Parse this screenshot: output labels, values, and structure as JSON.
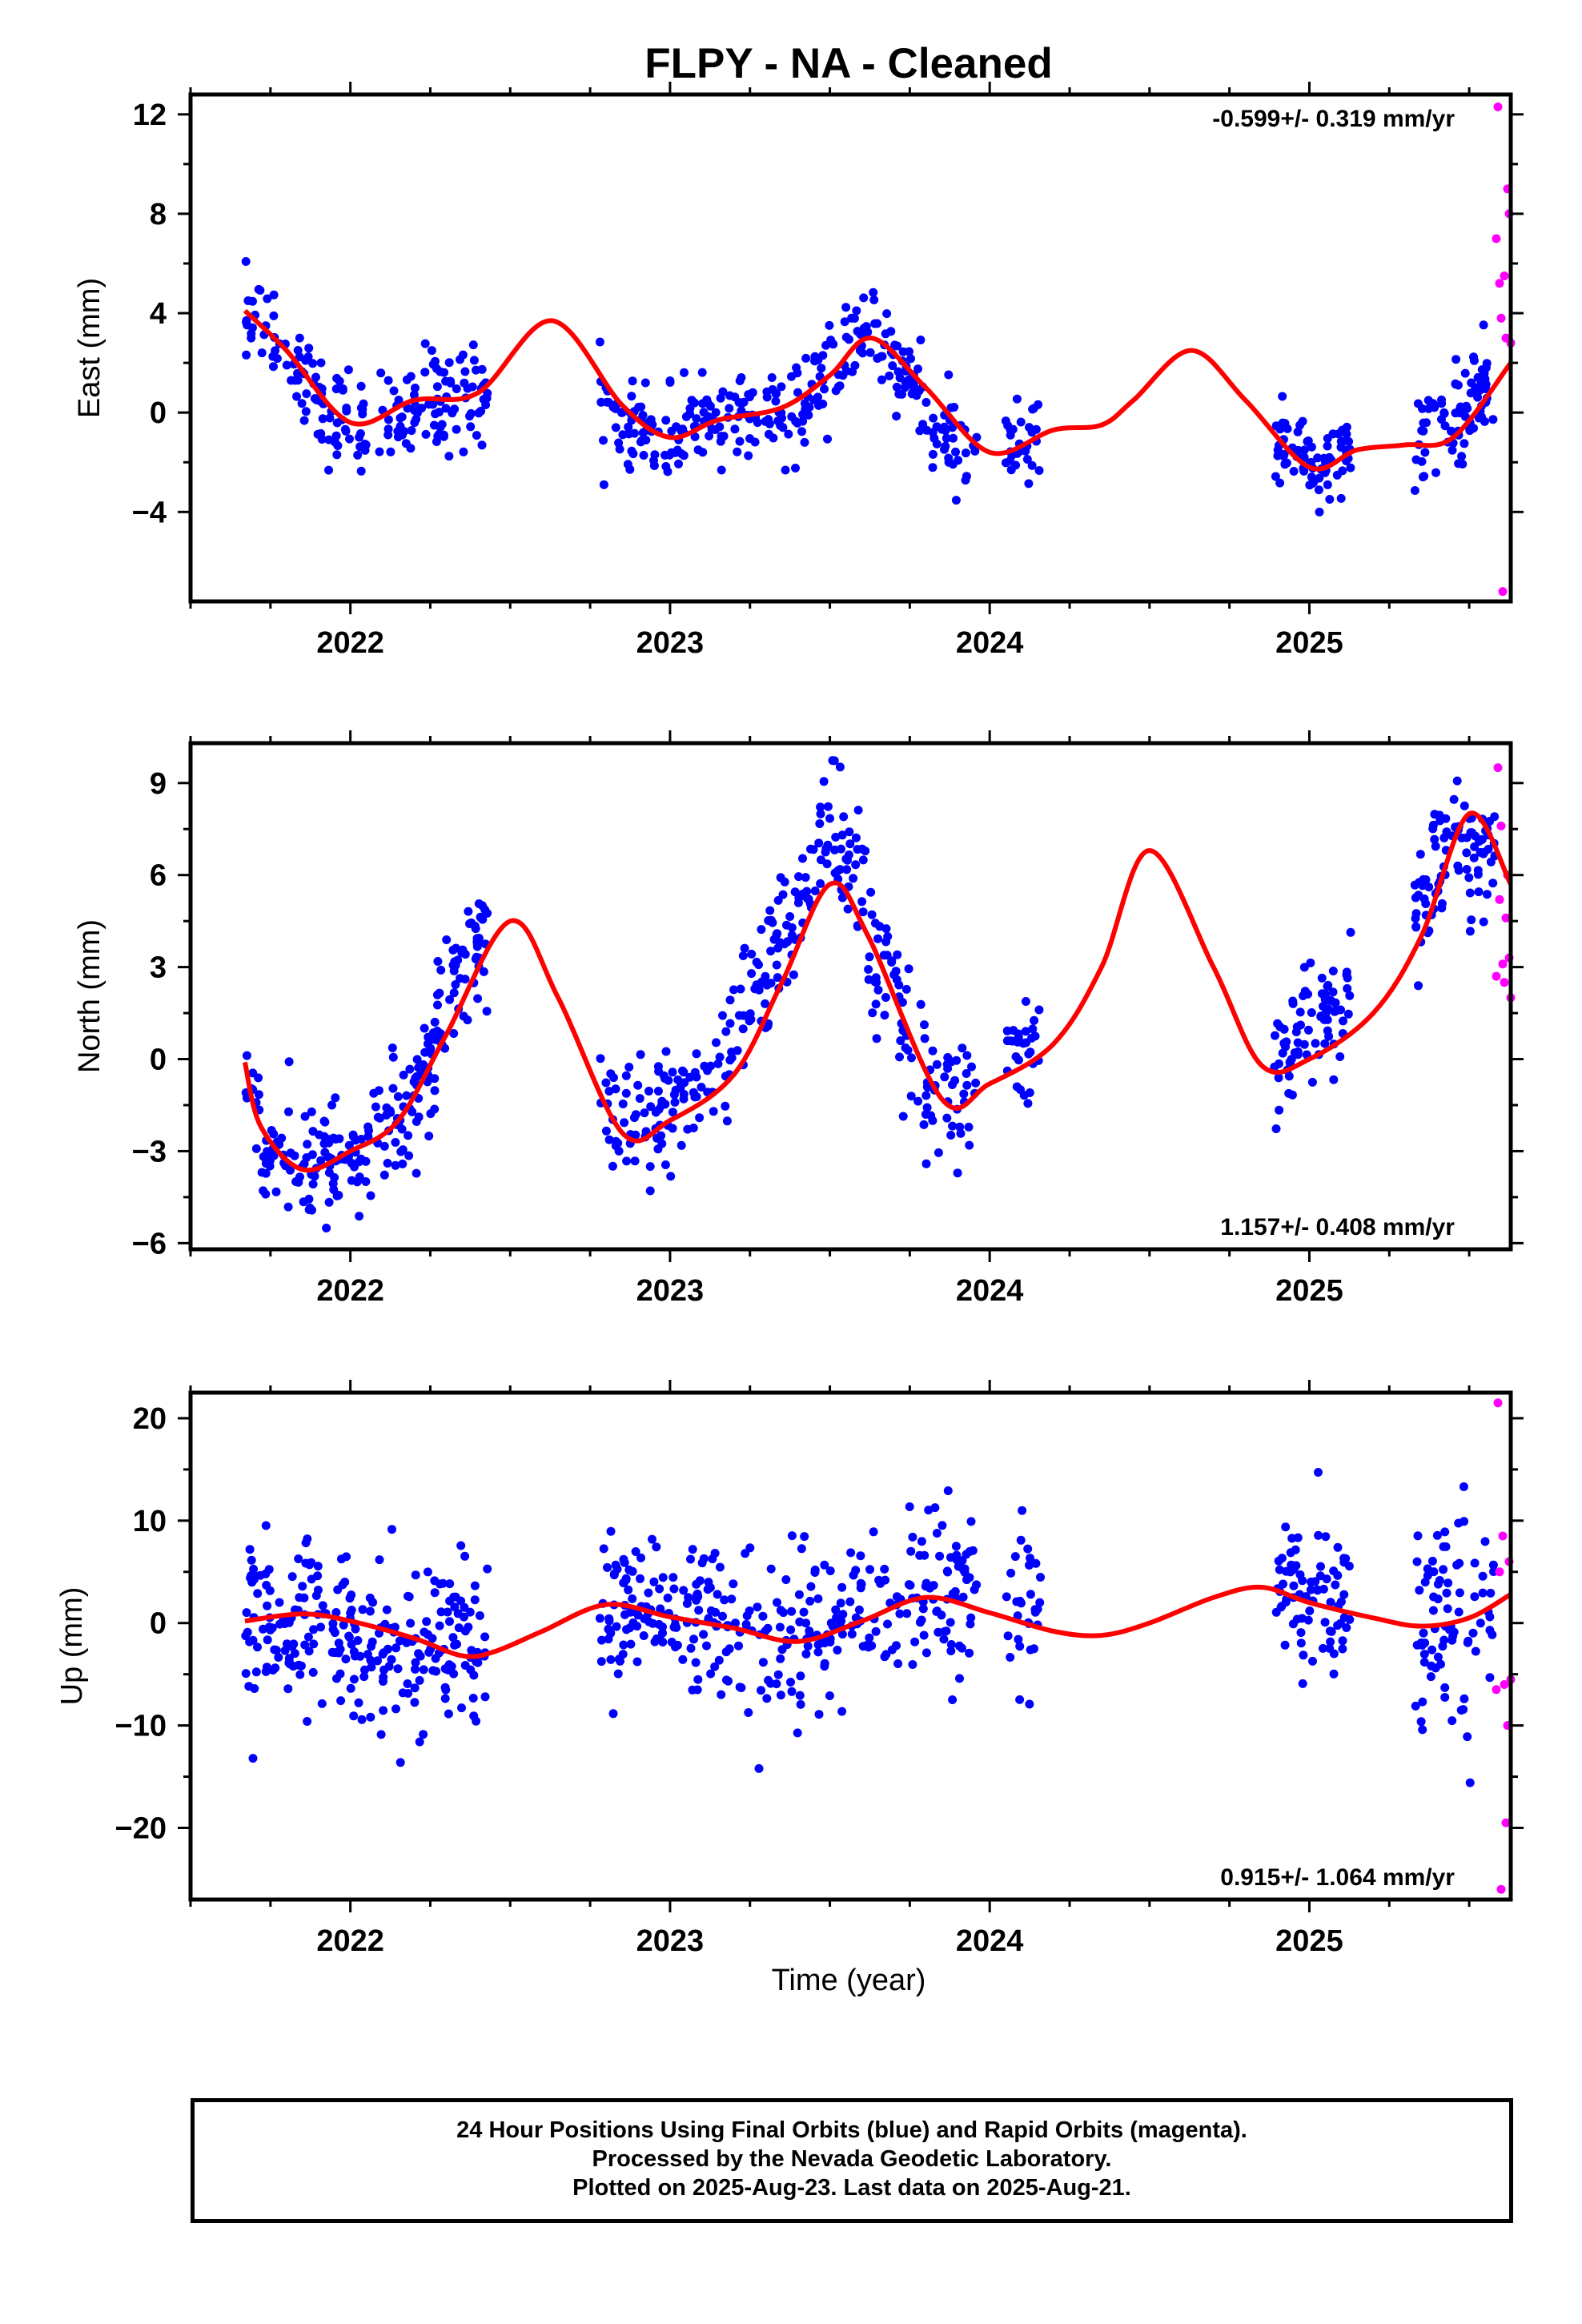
{
  "title": "FLPY  - NA - Cleaned",
  "x_axis_label": "Time (year)",
  "footer": {
    "line1": "24 Hour Positions Using Final Orbits (blue) and Rapid Orbits (magenta).",
    "line2": "Processed by the Nevada Geodetic Laboratory.",
    "line3": "Plotted on 2025-Aug-23. Last data on 2025-Aug-21."
  },
  "colors": {
    "final_orbits": "#0000ff",
    "rapid_orbits": "#ff00ff",
    "model_fit": "#ff0000"
  },
  "chart_data": [
    {
      "type": "scatter",
      "ylabel": "East (mm)",
      "xlim": [
        2021.5,
        2025.63
      ],
      "ylim": [
        -7.6,
        12.8
      ],
      "xticks": [
        2022,
        2023,
        2024,
        2025
      ],
      "yticks": [
        -4,
        0,
        4,
        8,
        12
      ],
      "rate_text": "-0.599+/- 0.319 mm/yr",
      "rate_position": "top-right",
      "data_segments": [
        {
          "start": 2021.67,
          "end": 2022.43,
          "count": 190,
          "spread": 1.0
        },
        {
          "start": 2022.78,
          "end": 2023.96,
          "count": 300,
          "spread": 0.9
        },
        {
          "start": 2024.05,
          "end": 2024.16,
          "count": 30,
          "spread": 1.0
        },
        {
          "start": 2024.89,
          "end": 2025.13,
          "count": 80,
          "spread": 0.7
        },
        {
          "start": 2025.33,
          "end": 2025.58,
          "count": 80,
          "spread": 1.0
        }
      ],
      "series": [
        {
          "name": "Final Orbits",
          "x": [
            2021.67,
            2021.75,
            2021.83,
            2021.92,
            2022.0,
            2022.08,
            2022.17,
            2022.25,
            2022.33,
            2022.42,
            2022.78,
            2022.86,
            2022.95,
            2023.04,
            2023.12,
            2023.2,
            2023.3,
            2023.38,
            2023.46,
            2023.55,
            2023.62,
            2023.7,
            2023.78,
            2023.86,
            2023.94,
            2024.08,
            2024.14,
            2024.92,
            2025.0,
            2025.1,
            2025.35,
            2025.45,
            2025.55
          ],
          "y": [
            4.0,
            3.0,
            1.5,
            0.2,
            -0.5,
            -0.4,
            0.3,
            0.7,
            0.5,
            1.0,
            0.4,
            -0.6,
            -1.0,
            -0.8,
            -0.3,
            0.0,
            -0.2,
            -0.1,
            1.0,
            2.5,
            3.0,
            2.2,
            0.5,
            -1.0,
            -1.5,
            -1.6,
            -1.2,
            -1.5,
            -2.2,
            -1.6,
            -1.3,
            -0.5,
            1.2
          ]
        },
        {
          "name": "Rapid Orbits",
          "x": [
            2025.585,
            2025.59,
            2025.595,
            2025.6,
            2025.605,
            2025.61,
            2025.615,
            2025.62,
            2025.625,
            2025.63
          ],
          "y": [
            7.0,
            12.3,
            5.2,
            3.8,
            -7.2,
            5.5,
            3.0,
            9.0,
            8.0,
            2.8
          ]
        }
      ],
      "fit_model": {
        "x": [
          2021.67,
          2021.8,
          2022.0,
          2022.2,
          2022.4,
          2022.63,
          2022.85,
          2023.0,
          2023.15,
          2023.35,
          2023.5,
          2023.63,
          2023.8,
          2024.0,
          2024.2,
          2024.35,
          2024.45,
          2024.63,
          2024.8,
          2025.0,
          2025.15,
          2025.3,
          2025.45,
          2025.63
        ],
        "y": [
          4.1,
          2.5,
          -0.4,
          0.5,
          0.8,
          3.7,
          0.3,
          -1.0,
          -0.3,
          0.2,
          1.5,
          3.0,
          1.0,
          -1.6,
          -0.7,
          -0.5,
          0.5,
          2.5,
          0.5,
          -2.2,
          -1.5,
          -1.3,
          -1.0,
          2.0
        ]
      }
    },
    {
      "type": "scatter",
      "ylabel": "North (mm)",
      "xlim": [
        2021.5,
        2025.63
      ],
      "ylim": [
        -6.2,
        10.3
      ],
      "xticks": [
        2022,
        2023,
        2024,
        2025
      ],
      "yticks": [
        -6,
        -3,
        0,
        3,
        6,
        9
      ],
      "rate_text": "1.157+/- 0.408 mm/yr",
      "rate_position": "bottom-right",
      "data_segments": [
        {
          "start": 2021.67,
          "end": 2022.43,
          "count": 240,
          "spread": 1.0
        },
        {
          "start": 2022.78,
          "end": 2023.96,
          "count": 320,
          "spread": 1.1
        },
        {
          "start": 2024.05,
          "end": 2024.16,
          "count": 30,
          "spread": 0.9
        },
        {
          "start": 2024.89,
          "end": 2025.13,
          "count": 80,
          "spread": 0.9
        },
        {
          "start": 2025.33,
          "end": 2025.58,
          "count": 90,
          "spread": 1.0
        }
      ],
      "series": [
        {
          "name": "Final Orbits",
          "x": [
            2021.67,
            2021.72,
            2021.8,
            2021.88,
            2021.96,
            2022.05,
            2022.15,
            2022.25,
            2022.32,
            2022.4,
            2022.8,
            2022.88,
            2022.96,
            2023.05,
            2023.15,
            2023.25,
            2023.35,
            2023.45,
            2023.5,
            2023.58,
            2023.65,
            2023.75,
            2023.85,
            2023.95,
            2024.08,
            2024.14,
            2024.9,
            2024.98,
            2025.08,
            2025.36,
            2025.46,
            2025.56
          ],
          "y": [
            0.0,
            -2.5,
            -3.2,
            -3.6,
            -3.5,
            -3.0,
            -2.0,
            0.0,
            2.5,
            4.0,
            -1.2,
            -2.3,
            -2.0,
            -1.2,
            -0.5,
            1.5,
            4.0,
            6.0,
            7.5,
            6.0,
            3.0,
            0.5,
            -1.5,
            -1.0,
            -0.2,
            0.5,
            -0.2,
            1.0,
            1.5,
            5.5,
            7.0,
            6.5
          ]
        },
        {
          "name": "Rapid Orbits",
          "x": [
            2025.585,
            2025.59,
            2025.595,
            2025.6,
            2025.605,
            2025.61,
            2025.615,
            2025.62,
            2025.625,
            2025.63
          ],
          "y": [
            2.7,
            9.5,
            5.2,
            7.6,
            3.1,
            2.5,
            4.6,
            6.0,
            3.3,
            2.0
          ]
        }
      ],
      "fit_model": {
        "x": [
          2021.67,
          2021.72,
          2021.85,
          2022.0,
          2022.15,
          2022.3,
          2022.5,
          2022.65,
          2022.85,
          2023.0,
          2023.2,
          2023.35,
          2023.5,
          2023.62,
          2023.85,
          2024.0,
          2024.2,
          2024.35,
          2024.5,
          2024.7,
          2024.85,
          2025.0,
          2025.2,
          2025.35,
          2025.5,
          2025.63
        ],
        "y": [
          -0.1,
          -2.2,
          -3.6,
          -3.0,
          -2.0,
          0.8,
          4.5,
          2.0,
          -2.4,
          -2.0,
          -0.5,
          2.5,
          5.7,
          4.0,
          -1.3,
          -0.8,
          0.5,
          3.0,
          6.8,
          3.0,
          -0.2,
          0.0,
          1.5,
          4.0,
          8.0,
          5.7
        ]
      }
    },
    {
      "type": "scatter",
      "ylabel": "Up (mm)",
      "xlim": [
        2021.5,
        2025.63
      ],
      "ylim": [
        -27,
        22.5
      ],
      "xticks": [
        2022,
        2023,
        2024,
        2025
      ],
      "yticks": [
        -20,
        -10,
        0,
        10,
        20
      ],
      "rate_text": "0.915+/- 1.064 mm/yr",
      "rate_position": "bottom-right",
      "data_segments": [
        {
          "start": 2021.67,
          "end": 2022.43,
          "count": 260,
          "spread": 4.0
        },
        {
          "start": 2022.78,
          "end": 2023.96,
          "count": 340,
          "spread": 4.2
        },
        {
          "start": 2024.05,
          "end": 2024.16,
          "count": 30,
          "spread": 4.0
        },
        {
          "start": 2024.89,
          "end": 2025.13,
          "count": 80,
          "spread": 4.0
        },
        {
          "start": 2025.33,
          "end": 2025.58,
          "count": 80,
          "spread": 5.0
        }
      ],
      "series": [
        {
          "name": "Final Orbits",
          "x": [
            2021.67,
            2021.8,
            2021.95,
            2022.1,
            2022.25,
            2022.4,
            2022.8,
            2022.95,
            2023.1,
            2023.25,
            2023.4,
            2023.55,
            2023.7,
            2023.85,
            2024.1,
            2024.92,
            2025.05,
            2025.38,
            2025.5
          ],
          "y": [
            0.0,
            0.5,
            0.0,
            -1.5,
            -2.5,
            -3.0,
            1.5,
            0.5,
            -0.5,
            -1.5,
            -2.0,
            0.0,
            2.0,
            2.5,
            0.5,
            3.0,
            2.0,
            -0.5,
            1.0
          ]
        },
        {
          "name": "Rapid Orbits",
          "x": [
            2025.585,
            2025.59,
            2025.595,
            2025.6,
            2025.605,
            2025.61,
            2025.615,
            2025.62,
            2025.625,
            2025.63
          ],
          "y": [
            -6.5,
            21.5,
            5.0,
            -26.0,
            8.5,
            -6.0,
            -19.5,
            -10.0,
            6.0,
            -5.5
          ]
        }
      ],
      "fit_model": {
        "x": [
          2021.67,
          2021.85,
          2022.0,
          2022.2,
          2022.35,
          2022.45,
          2022.6,
          2022.8,
          2023.0,
          2023.2,
          2023.4,
          2023.6,
          2023.8,
          2024.0,
          2024.2,
          2024.35,
          2024.5,
          2024.7,
          2024.85,
          2025.0,
          2025.2,
          2025.35,
          2025.5,
          2025.63
        ],
        "y": [
          0.2,
          0.9,
          0.2,
          -1.5,
          -3.2,
          -2.8,
          -0.8,
          1.8,
          0.6,
          -0.5,
          -1.8,
          0.2,
          2.5,
          1.0,
          -0.8,
          -1.2,
          0.0,
          2.5,
          3.5,
          2.0,
          0.5,
          -0.3,
          0.5,
          2.8
        ]
      }
    }
  ]
}
